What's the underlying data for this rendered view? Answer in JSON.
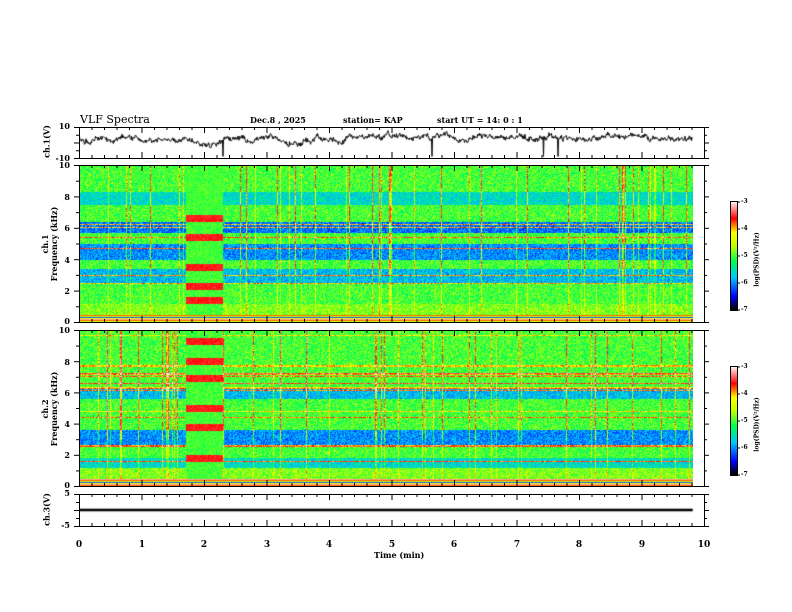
{
  "header": {
    "title": "VLF Spectra",
    "date": "Dec.8  , 2025",
    "station": "station= KAP",
    "start": "start  UT  =   14: 0  : 1"
  },
  "panels": {
    "ch1_wave": {
      "label": "ch.1(V)",
      "ticks": [
        "10",
        "-10"
      ]
    },
    "ch1_spec": {
      "label_line1": "ch.1",
      "label_line2": "Frequency  (kHz)",
      "ticks": [
        "10",
        "8",
        "6",
        "4",
        "2",
        "0"
      ]
    },
    "ch2_spec": {
      "label_line1": "ch.2",
      "label_line2": "Frequency  (kHz)",
      "ticks": [
        "10",
        "8",
        "6",
        "4",
        "2",
        "0"
      ]
    },
    "ch3_wave": {
      "label": "ch.3(V)",
      "ticks": [
        "5",
        "-5"
      ]
    }
  },
  "colorbar": {
    "label": "log(PSD)(V²/Hz)",
    "ticks": [
      "-3",
      "-4",
      "-5",
      "-6",
      "-7"
    ],
    "colors": [
      "#ffffff",
      "#ff0000",
      "#ffff00",
      "#00ff00",
      "#00ffff",
      "#0000ff",
      "#000000"
    ]
  },
  "chart_data": [
    {
      "type": "line",
      "title": "VLF Spectra",
      "ylabel": "ch.1(V)",
      "xlabel": "Time  (min)",
      "xlim": [
        0,
        10
      ],
      "ylim": [
        -10,
        10
      ],
      "x_end": 9.82,
      "mean": 3,
      "amplitude": 4
    },
    {
      "type": "heatmap",
      "ylabel": "ch.1 Frequency  (kHz)",
      "xlim": [
        0,
        10
      ],
      "ylim": [
        0,
        10
      ],
      "zlim": [
        -7,
        -3
      ],
      "x_end": 9.82,
      "burst_interval_min": [
        1.7,
        2.3
      ],
      "burst_lines_khz": [
        5.4,
        2.3,
        6.6,
        3.5,
        1.4
      ]
    },
    {
      "type": "heatmap",
      "ylabel": "ch.2 Frequency  (kHz)",
      "xlim": [
        0,
        10
      ],
      "ylim": [
        0,
        10
      ],
      "zlim": [
        -7,
        -3
      ],
      "x_end": 9.82,
      "burst_interval_min": [
        1.7,
        2.3
      ],
      "burst_lines_khz": [
        9.3,
        8.0,
        6.9,
        5.0,
        3.8,
        1.8
      ]
    },
    {
      "type": "line",
      "ylabel": "ch.3(V)",
      "xlabel": "Time  (min)",
      "xlim": [
        0,
        10
      ],
      "ylim": [
        -5,
        5
      ],
      "x_end": 9.82,
      "mean": 0,
      "amplitude": 0.4
    }
  ],
  "xaxis": {
    "label": "Time  (min)",
    "ticks": [
      "0",
      "1",
      "2",
      "3",
      "4",
      "5",
      "6",
      "7",
      "8",
      "9",
      "10"
    ]
  }
}
